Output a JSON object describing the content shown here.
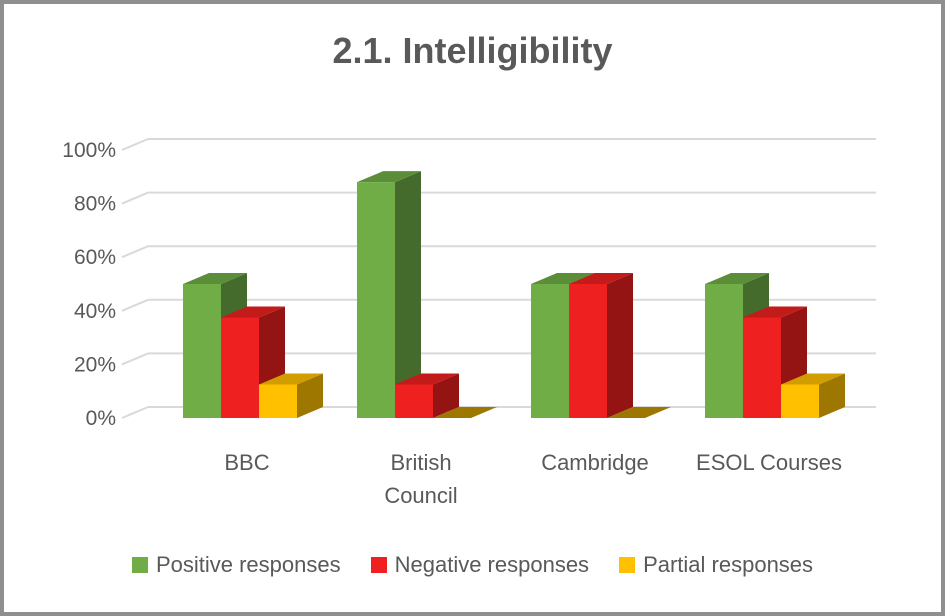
{
  "chart_data": {
    "type": "bar",
    "title": "2.1. Intelligibility",
    "categories": [
      {
        "lines": [
          "BBC"
        ]
      },
      {
        "lines": [
          "British",
          "Council"
        ]
      },
      {
        "lines": [
          "Cambridge"
        ]
      },
      {
        "lines": [
          "ESOL Courses"
        ]
      }
    ],
    "series": [
      {
        "name": "Positive responses",
        "color": "#70ad47",
        "values": [
          50,
          88,
          50,
          50
        ]
      },
      {
        "name": "Negative responses",
        "color": "#ee2020",
        "values": [
          37.5,
          12.5,
          50,
          37.5
        ]
      },
      {
        "name": "Partial responses",
        "color": "#ffc000",
        "values": [
          12.5,
          0,
          0,
          12.5
        ]
      }
    ],
    "yticks": [
      "0%",
      "20%",
      "40%",
      "60%",
      "80%",
      "100%"
    ],
    "ylim": [
      0,
      100
    ],
    "grid": true,
    "legend_position": "bottom"
  }
}
